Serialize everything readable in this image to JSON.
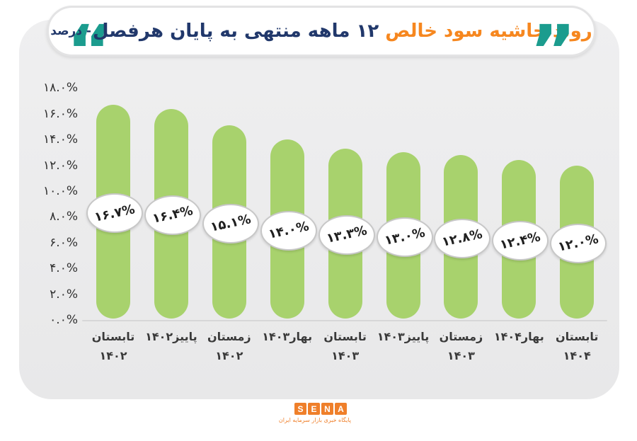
{
  "title": {
    "orange_part": "روند حاشیه سود خالص",
    "navy_part": "۱۲ ماهه منتهی به پایان هرفصل",
    "suffix": "- درصد",
    "full": "روند حاشیه سود خالص ۱۲ ماهه منتهی به پایان هرفصل- درصد",
    "open_quote": "“",
    "close_quote": "”"
  },
  "colors": {
    "accent_orange": "#f6871f",
    "title_navy": "#21386b",
    "quote_teal": "#1b9c8e",
    "bar_green": "#a8d26d",
    "card_background": "#ececed",
    "logo_orange": "#ef7f2a"
  },
  "chart_data": {
    "type": "bar",
    "title": "روند حاشیه سود خالص ۱۲ ماهه منتهی به پایان هرفصل- درصد",
    "xlabel": "",
    "ylabel": "درصد",
    "ylim": [
      0,
      18
    ],
    "grid": false,
    "legend": false,
    "bar_color": "#a8d26d",
    "categories": [
      "تابستان ۱۴۰۲",
      "پاییز ۱۴۰۲",
      "زمستان ۱۴۰۲",
      "بهار ۱۴۰۳",
      "تابستان ۱۴۰۳",
      "پاییز ۱۴۰۳",
      "زمستان ۱۴۰۳",
      "بهار ۱۴۰۴",
      "تابستان ۱۴۰۴"
    ],
    "category_lines": [
      [
        "تابستان",
        "۱۴۰۲"
      ],
      [
        "پاییز۱۴۰۲"
      ],
      [
        "زمستان",
        "۱۴۰۲"
      ],
      [
        "بهار۱۴۰۳"
      ],
      [
        "تابستان",
        "۱۴۰۳"
      ],
      [
        "پاییز۱۴۰۳"
      ],
      [
        "زمستان",
        "۱۴۰۳"
      ],
      [
        "بهار۱۴۰۴"
      ],
      [
        "تابستان",
        "۱۴۰۴"
      ]
    ],
    "values": [
      16.7,
      16.4,
      15.1,
      14.0,
      13.3,
      13.0,
      12.8,
      12.4,
      12.0
    ],
    "value_labels": [
      "۱۶.۷%",
      "۱۶.۴%",
      "۱۵.۱%",
      "۱۴.۰%",
      "۱۳.۳%",
      "۱۳.۰%",
      "۱۲.۸%",
      "۱۲.۴%",
      "۱۲.۰%"
    ],
    "y_ticks": [
      "۰.۰%",
      "۲.۰%",
      "۴.۰%",
      "۶.۰%",
      "۸.۰%",
      "۱۰.۰%",
      "۱۲.۰%",
      "۱۴.۰%",
      "۱۶.۰%",
      "۱۸.۰%"
    ],
    "y_tick_values": [
      0,
      2,
      4,
      6,
      8,
      10,
      12,
      14,
      16,
      18
    ]
  },
  "footer": {
    "logo_letters": [
      "S",
      "E",
      "N",
      "A"
    ],
    "logo_subtitle": "پایگاه خبری بازار سرمایه ایران"
  }
}
